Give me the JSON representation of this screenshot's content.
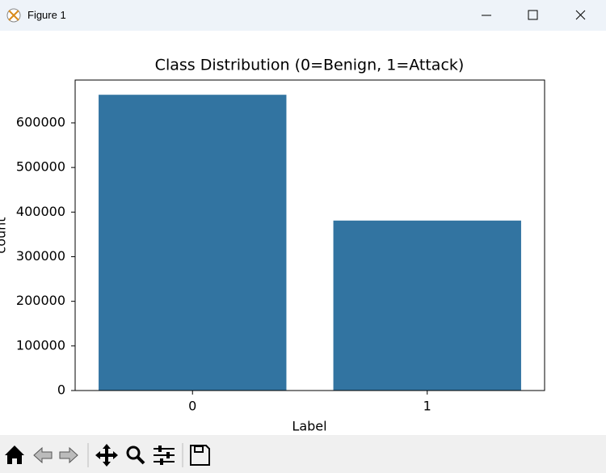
{
  "window": {
    "title": "Figure 1"
  },
  "chart_data": {
    "type": "bar",
    "title": "Class Distribution (0=Benign, 1=Attack)",
    "x_label": "Label",
    "y_label": "count",
    "categories": [
      "0",
      "1"
    ],
    "values": [
      663000,
      381000
    ],
    "color": "#3274a1",
    "ylim": [
      0,
      696000
    ],
    "yticks": [
      0,
      100000,
      200000,
      300000,
      400000,
      500000,
      600000
    ],
    "grid": false
  }
}
